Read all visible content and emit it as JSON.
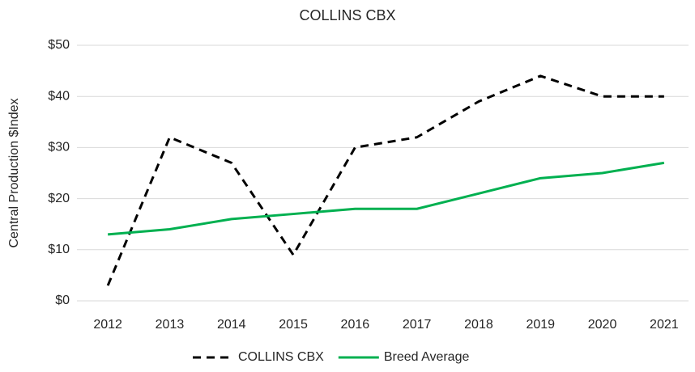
{
  "chart_data": {
    "type": "line",
    "title": "COLLINS CBX",
    "y_label": "Central Production $Index",
    "categories": [
      "2012",
      "2013",
      "2014",
      "2015",
      "2016",
      "2017",
      "2018",
      "2019",
      "2020",
      "2021"
    ],
    "series": [
      {
        "name": "COLLINS CBX",
        "color": "#000000",
        "dash": true,
        "values": [
          3,
          32,
          27,
          9,
          30,
          32,
          39,
          44,
          40,
          40
        ]
      },
      {
        "name": "Breed Average",
        "color": "#00b050",
        "dash": false,
        "values": [
          13,
          14,
          16,
          17,
          18,
          18,
          21,
          24,
          25,
          27
        ]
      }
    ],
    "ylim": [
      0,
      50
    ],
    "yticks": [
      {
        "value": 0,
        "label": "$0"
      },
      {
        "value": 10,
        "label": "$10"
      },
      {
        "value": 20,
        "label": "$20"
      },
      {
        "value": 30,
        "label": "$30"
      },
      {
        "value": 40,
        "label": "$40"
      },
      {
        "value": 50,
        "label": "$50"
      }
    ],
    "grid": true,
    "legend": "bottom"
  }
}
